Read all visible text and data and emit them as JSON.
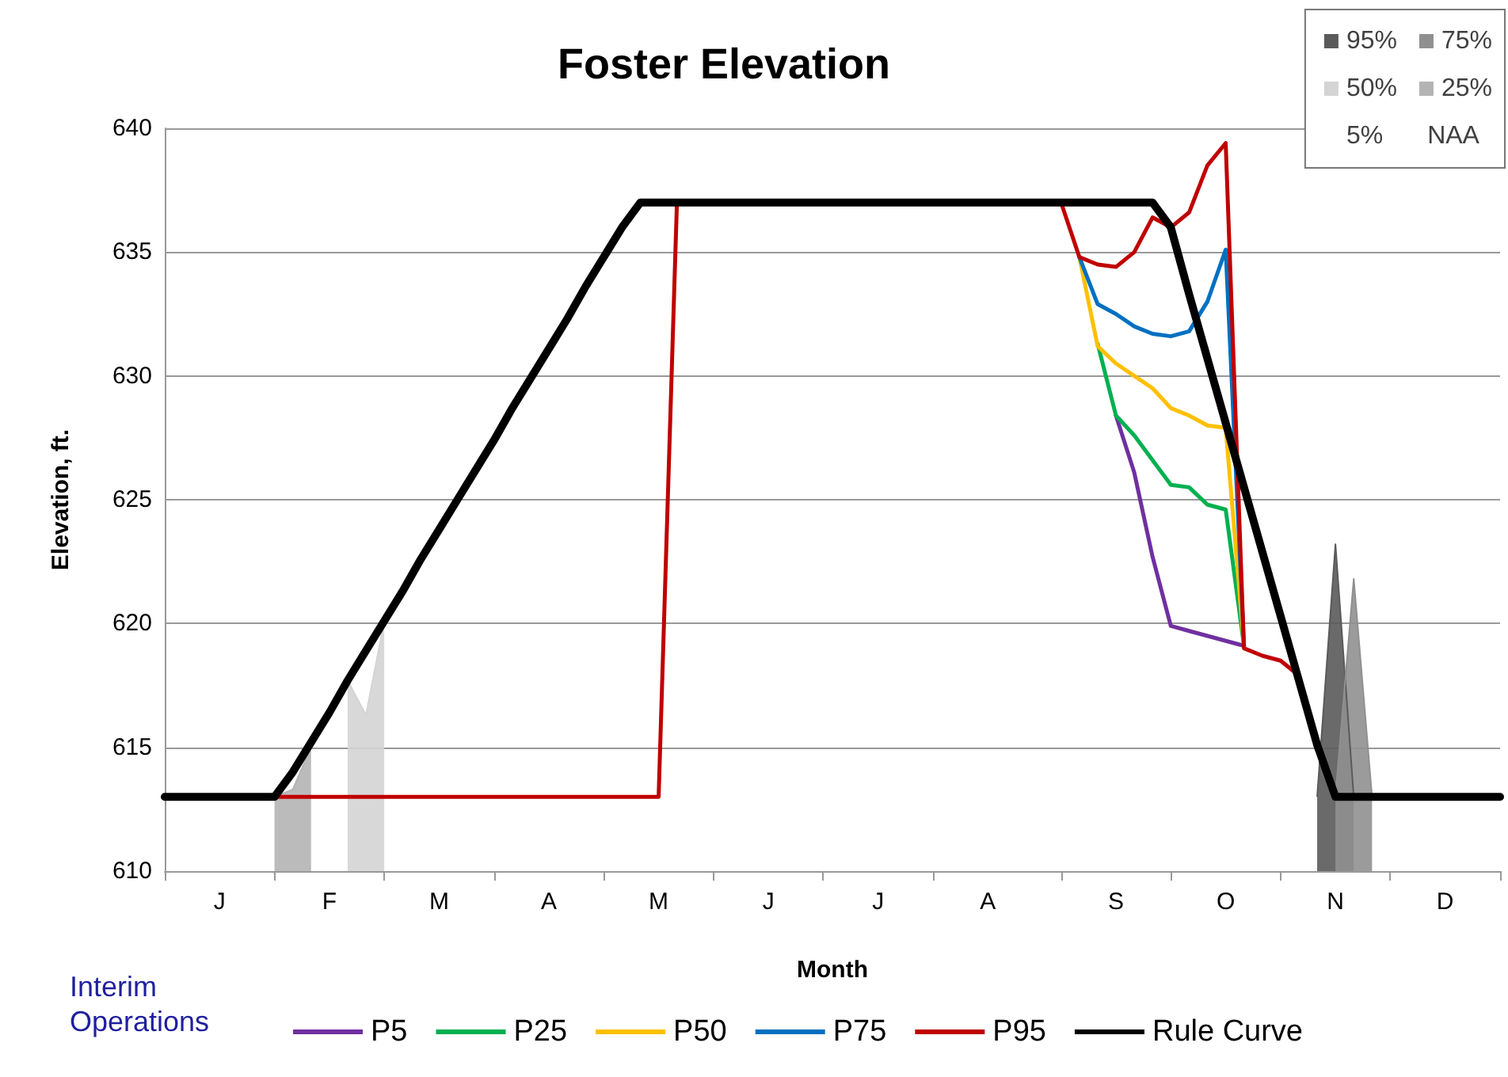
{
  "chart_data": {
    "type": "line",
    "title": "Foster Elevation",
    "xlabel": "Month",
    "ylabel": "Elevation, ft.",
    "legend_title": "Interim Operations",
    "legend": "bottom",
    "grid": "y",
    "marker": "none",
    "line_style": "solid",
    "categories": [
      null,
      null,
      null,
      "J",
      null,
      null,
      null,
      null,
      null,
      "F",
      null,
      null,
      null,
      null,
      null,
      "M",
      null,
      null,
      null,
      null,
      null,
      "A",
      null,
      null,
      null,
      null,
      null,
      "M",
      null,
      null,
      null,
      null,
      null,
      "J",
      null,
      null,
      null,
      null,
      null,
      "J",
      null,
      null,
      null,
      null,
      null,
      "A",
      null,
      null,
      null,
      null,
      null,
      null,
      "S",
      null,
      null,
      null,
      null,
      null,
      "O",
      null,
      null,
      null,
      null,
      null,
      "N",
      null,
      null,
      null,
      null,
      null,
      "D",
      null,
      null,
      null
    ],
    "ylim": [
      610,
      640
    ],
    "yticks": [
      610,
      615,
      620,
      625,
      630,
      635,
      640
    ],
    "series": [
      {
        "name": "95%",
        "type": "area",
        "color": "#5a5a5a",
        "values": [
          null,
          null,
          null,
          null,
          null,
          null,
          null,
          null,
          null,
          null,
          null,
          null,
          null,
          null,
          null,
          null,
          null,
          null,
          null,
          null,
          null,
          null,
          null,
          null,
          null,
          null,
          null,
          null,
          null,
          null,
          null,
          null,
          null,
          null,
          null,
          null,
          null,
          null,
          null,
          null,
          null,
          null,
          null,
          null,
          null,
          null,
          null,
          null,
          null,
          null,
          null,
          null,
          null,
          null,
          null,
          null,
          null,
          null,
          null,
          null,
          null,
          null,
          null,
          613,
          623.2,
          613,
          null,
          null,
          null,
          null,
          null,
          null,
          null,
          null
        ]
      },
      {
        "name": "75%",
        "type": "area",
        "color": "#909090",
        "values": [
          null,
          null,
          null,
          null,
          null,
          null,
          null,
          null,
          null,
          null,
          null,
          null,
          null,
          null,
          null,
          null,
          null,
          null,
          null,
          null,
          null,
          null,
          null,
          null,
          null,
          null,
          null,
          null,
          null,
          null,
          null,
          null,
          null,
          null,
          null,
          null,
          null,
          null,
          null,
          null,
          null,
          null,
          null,
          null,
          null,
          null,
          null,
          null,
          null,
          null,
          null,
          null,
          null,
          null,
          null,
          null,
          null,
          null,
          null,
          null,
          null,
          null,
          null,
          null,
          613,
          621.8,
          613,
          null,
          null,
          null,
          null,
          null,
          null,
          null
        ]
      },
      {
        "name": "50%",
        "type": "area",
        "color": "#d4d4d4",
        "values": [
          null,
          null,
          null,
          null,
          null,
          null,
          null,
          null,
          null,
          null,
          617.7,
          616.3,
          620.1,
          null,
          null,
          null,
          null,
          null,
          null,
          null,
          null,
          null,
          null,
          null,
          null,
          null,
          null,
          null,
          null,
          null,
          null,
          null,
          null,
          null,
          null,
          null,
          null,
          null,
          null,
          null,
          null,
          null,
          null,
          null,
          null,
          null,
          null,
          null,
          null,
          null,
          null,
          null,
          null,
          null,
          null,
          null,
          null,
          null,
          null,
          null,
          null,
          null,
          null,
          null,
          null,
          null,
          null,
          null,
          null,
          null,
          null,
          null,
          null,
          null
        ]
      },
      {
        "name": "25%",
        "type": "area",
        "color": "#b4b4b4",
        "values": [
          null,
          null,
          null,
          null,
          null,
          null,
          613,
          613.3,
          615,
          null,
          null,
          null,
          null,
          null,
          null,
          null,
          null,
          null,
          null,
          null,
          null,
          null,
          null,
          null,
          null,
          null,
          null,
          null,
          null,
          null,
          null,
          null,
          null,
          null,
          null,
          null,
          null,
          null,
          null,
          null,
          null,
          null,
          null,
          null,
          null,
          null,
          null,
          null,
          null,
          null,
          null,
          null,
          null,
          null,
          null,
          null,
          null,
          null,
          null,
          null,
          null,
          null,
          null,
          null,
          null,
          null,
          null,
          null,
          null,
          null,
          null,
          null,
          null,
          null
        ]
      },
      {
        "name": "5%",
        "type": "area",
        "values": [
          null,
          null,
          null,
          null,
          null,
          null,
          null,
          null,
          null,
          null,
          null,
          null,
          null,
          null,
          null,
          null,
          null,
          null,
          null,
          null,
          null,
          null,
          null,
          null,
          null,
          null,
          null,
          null,
          null,
          null,
          null,
          null,
          null,
          null,
          null,
          null,
          null,
          null,
          null,
          null,
          null,
          null,
          null,
          null,
          null,
          null,
          null,
          null,
          null,
          null,
          null,
          null,
          null,
          null,
          null,
          null,
          null,
          null,
          null,
          null,
          null,
          null,
          null,
          null,
          null,
          null,
          null,
          null,
          null,
          null,
          null,
          null,
          null,
          null
        ]
      },
      {
        "name": "NAA",
        "type": "area",
        "values": [
          null,
          null,
          null,
          null,
          null,
          null,
          null,
          null,
          null,
          null,
          null,
          null,
          null,
          null,
          null,
          null,
          null,
          null,
          null,
          null,
          null,
          null,
          null,
          null,
          null,
          null,
          null,
          null,
          null,
          null,
          null,
          null,
          null,
          null,
          null,
          null,
          null,
          null,
          null,
          null,
          null,
          null,
          null,
          null,
          null,
          null,
          null,
          null,
          null,
          null,
          null,
          null,
          null,
          null,
          null,
          null,
          null,
          null,
          null,
          null,
          null,
          null,
          null,
          null,
          null,
          null,
          null,
          null,
          null,
          null,
          null,
          null,
          null,
          null
        ]
      },
      {
        "name": "P5",
        "color": "#7030a0",
        "values": [
          null,
          null,
          null,
          null,
          null,
          null,
          null,
          null,
          null,
          null,
          null,
          null,
          null,
          null,
          null,
          null,
          null,
          null,
          null,
          null,
          null,
          null,
          null,
          null,
          null,
          null,
          null,
          null,
          null,
          null,
          null,
          null,
          null,
          null,
          null,
          null,
          null,
          null,
          null,
          null,
          null,
          null,
          null,
          null,
          null,
          null,
          null,
          null,
          null,
          null,
          null,
          null,
          628.4,
          626.1,
          622.7,
          619.9,
          619.7,
          619.5,
          619.3,
          619.1,
          null,
          null,
          null,
          null,
          null,
          null,
          null,
          null,
          null,
          null,
          null,
          null,
          null,
          null
        ]
      },
      {
        "name": "P25",
        "color": "#00b050",
        "values": [
          null,
          null,
          null,
          null,
          null,
          null,
          null,
          null,
          null,
          null,
          null,
          null,
          null,
          null,
          null,
          null,
          null,
          null,
          null,
          null,
          null,
          null,
          null,
          null,
          null,
          null,
          null,
          null,
          null,
          null,
          null,
          null,
          null,
          null,
          null,
          null,
          null,
          null,
          null,
          null,
          null,
          null,
          null,
          null,
          null,
          null,
          null,
          null,
          null,
          null,
          null,
          631.3,
          628.4,
          627.6,
          626.6,
          625.6,
          625.5,
          624.8,
          624.6,
          619.1,
          null,
          null,
          null,
          null,
          null,
          null,
          null,
          null,
          null,
          null,
          null,
          null,
          null,
          null
        ]
      },
      {
        "name": "P50",
        "color": "#ffc000",
        "values": [
          null,
          null,
          null,
          null,
          null,
          null,
          null,
          null,
          null,
          null,
          null,
          null,
          null,
          null,
          null,
          null,
          null,
          null,
          null,
          null,
          null,
          null,
          null,
          null,
          null,
          null,
          null,
          null,
          null,
          null,
          null,
          null,
          null,
          null,
          null,
          null,
          null,
          null,
          null,
          null,
          null,
          null,
          null,
          null,
          null,
          null,
          null,
          null,
          null,
          null,
          634.8,
          631.2,
          630.5,
          630,
          629.5,
          628.7,
          628.4,
          628,
          627.9,
          619.1,
          null,
          null,
          null,
          null,
          null,
          null,
          null,
          null,
          null,
          null,
          null,
          null,
          null,
          null
        ]
      },
      {
        "name": "P75",
        "color": "#0070c0",
        "values": [
          null,
          null,
          null,
          null,
          null,
          null,
          null,
          null,
          null,
          null,
          null,
          null,
          null,
          null,
          null,
          null,
          null,
          null,
          null,
          null,
          null,
          null,
          null,
          null,
          null,
          null,
          null,
          null,
          null,
          null,
          null,
          null,
          null,
          null,
          null,
          null,
          null,
          null,
          null,
          null,
          null,
          null,
          null,
          null,
          null,
          null,
          null,
          null,
          null,
          null,
          634.8,
          632.9,
          632.5,
          632,
          631.7,
          631.6,
          631.8,
          633,
          635.1,
          619.1,
          null,
          null,
          null,
          null,
          null,
          null,
          null,
          null,
          null,
          null,
          null,
          null,
          null,
          null
        ]
      },
      {
        "name": "P95",
        "color": "#c00000",
        "values": [
          null,
          null,
          null,
          null,
          null,
          null,
          613,
          613,
          613,
          613,
          613,
          613,
          613,
          613,
          613,
          613,
          613,
          613,
          613,
          613,
          613,
          613,
          613,
          613,
          613,
          613,
          613,
          613,
          637,
          null,
          null,
          null,
          null,
          null,
          null,
          null,
          null,
          null,
          null,
          null,
          null,
          null,
          null,
          null,
          null,
          null,
          null,
          null,
          null,
          637,
          634.8,
          634.5,
          634.4,
          635,
          636.4,
          636,
          636.6,
          638.5,
          639.4,
          619,
          618.7,
          618.5,
          617.9,
          null,
          null,
          null,
          null,
          null,
          null,
          null,
          null,
          null,
          null,
          null
        ]
      },
      {
        "name": "Rule Curve",
        "color": "#000000",
        "values": [
          613,
          613,
          613,
          613,
          613,
          613,
          613,
          614,
          615.2,
          616.4,
          617.7,
          618.9,
          620.1,
          621.3,
          622.6,
          623.8,
          625,
          626.2,
          627.4,
          628.7,
          629.9,
          631.1,
          632.3,
          633.6,
          634.8,
          636,
          637,
          637,
          637,
          637,
          637,
          637,
          637,
          637,
          637,
          637,
          637,
          637,
          637,
          637,
          637,
          637,
          637,
          637,
          637,
          637,
          637,
          637,
          637,
          637,
          637,
          637,
          637,
          637,
          637,
          636,
          633.3,
          630.7,
          628.1,
          625.5,
          622.9,
          620.3,
          617.7,
          615.1,
          613,
          613,
          613,
          613,
          613,
          613,
          613,
          613,
          613,
          613
        ]
      }
    ]
  }
}
